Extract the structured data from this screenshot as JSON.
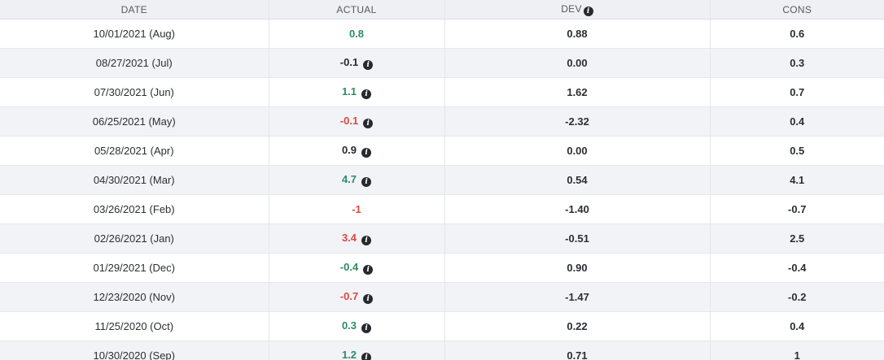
{
  "headers": {
    "date": "DATE",
    "actual": "ACTUAL",
    "dev": "DEV",
    "cons": "CONS",
    "dev_icon": "info-icon"
  },
  "colors": {
    "positive": "#2e8a63",
    "negative": "#d9493f",
    "neutral": "#262a2e",
    "row_alt": "#f2f3f7",
    "header_bg": "#eef0f3"
  },
  "rows": [
    {
      "date": "10/01/2021 (Aug)",
      "actual": "0.8",
      "actual_trend": "pos",
      "info": false,
      "dev": "0.88",
      "cons": "0.6"
    },
    {
      "date": "08/27/2021 (Jul)",
      "actual": "-0.1",
      "actual_trend": "neutral",
      "info": true,
      "dev": "0.00",
      "cons": "0.3"
    },
    {
      "date": "07/30/2021 (Jun)",
      "actual": "1.1",
      "actual_trend": "pos",
      "info": true,
      "dev": "1.62",
      "cons": "0.7"
    },
    {
      "date": "06/25/2021 (May)",
      "actual": "-0.1",
      "actual_trend": "neg",
      "info": true,
      "dev": "-2.32",
      "cons": "0.4"
    },
    {
      "date": "05/28/2021 (Apr)",
      "actual": "0.9",
      "actual_trend": "neutral",
      "info": true,
      "dev": "0.00",
      "cons": "0.5"
    },
    {
      "date": "04/30/2021 (Mar)",
      "actual": "4.7",
      "actual_trend": "pos",
      "info": true,
      "dev": "0.54",
      "cons": "4.1"
    },
    {
      "date": "03/26/2021 (Feb)",
      "actual": "-1",
      "actual_trend": "neg",
      "info": false,
      "dev": "-1.40",
      "cons": "-0.7"
    },
    {
      "date": "02/26/2021 (Jan)",
      "actual": "3.4",
      "actual_trend": "neg",
      "info": true,
      "dev": "-0.51",
      "cons": "2.5"
    },
    {
      "date": "01/29/2021 (Dec)",
      "actual": "-0.4",
      "actual_trend": "pos",
      "info": true,
      "dev": "0.90",
      "cons": "-0.4"
    },
    {
      "date": "12/23/2020 (Nov)",
      "actual": "-0.7",
      "actual_trend": "neg",
      "info": true,
      "dev": "-1.47",
      "cons": "-0.2"
    },
    {
      "date": "11/25/2020 (Oct)",
      "actual": "0.3",
      "actual_trend": "pos",
      "info": true,
      "dev": "0.22",
      "cons": "0.4"
    },
    {
      "date": "10/30/2020 (Sep)",
      "actual": "1.2",
      "actual_trend": "pos",
      "info": true,
      "dev": "0.71",
      "cons": "1"
    }
  ]
}
